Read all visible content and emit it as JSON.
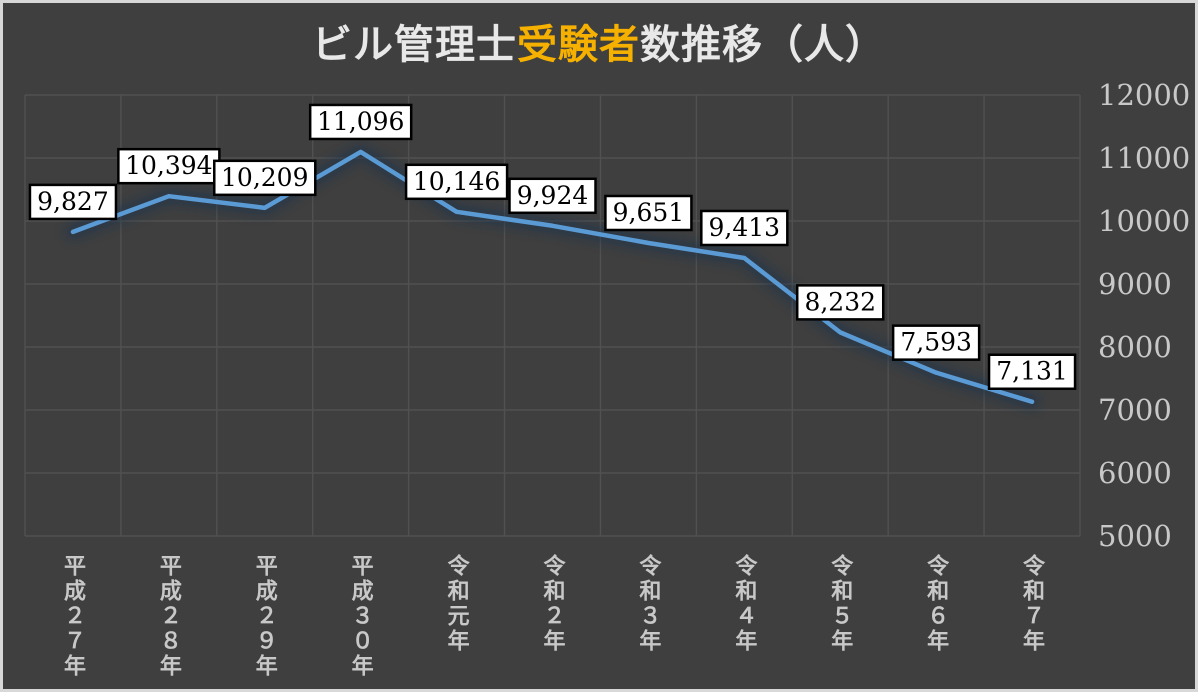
{
  "title": {
    "part1": "ビル管理士",
    "highlight": "受験者",
    "part2": "数推移（人）"
  },
  "colors": {
    "background": "#3F3F3F",
    "frame_border": "#D8D8D8",
    "gridline": "#515151",
    "axis_text": "#C8C8C8",
    "title_text": "#E8E8E8",
    "title_highlight": "#F6B100",
    "line": "#5B9BD5",
    "line_glow": "#16324F",
    "label_bg": "#FFFFFF",
    "label_border": "#000000",
    "label_text": "#000000"
  },
  "chart_data": {
    "type": "line",
    "title": "ビル管理士受験者数推移（人）",
    "categories": [
      "平成２７年",
      "平成２８年",
      "平成２９年",
      "平成３０年",
      "令和元年",
      "令和２年",
      "令和３年",
      "令和４年",
      "令和５年",
      "令和６年",
      "令和７年"
    ],
    "values": [
      9827,
      10394,
      10209,
      11096,
      10146,
      9924,
      9651,
      9413,
      8232,
      7593,
      7131
    ],
    "value_labels": [
      "9,827",
      "10,394",
      "10,209",
      "11,096",
      "10,146",
      "9,924",
      "9,651",
      "9,413",
      "8,232",
      "7,593",
      "7,131"
    ],
    "y_ticks": [
      12000,
      11000,
      10000,
      9000,
      8000,
      7000,
      6000,
      5000
    ],
    "ylim": [
      5000,
      12000
    ],
    "xlabel": "",
    "ylabel": "",
    "grid": true,
    "legend": "none",
    "y_axis_position": "right",
    "x_label_orientation": "vertical-upright"
  }
}
